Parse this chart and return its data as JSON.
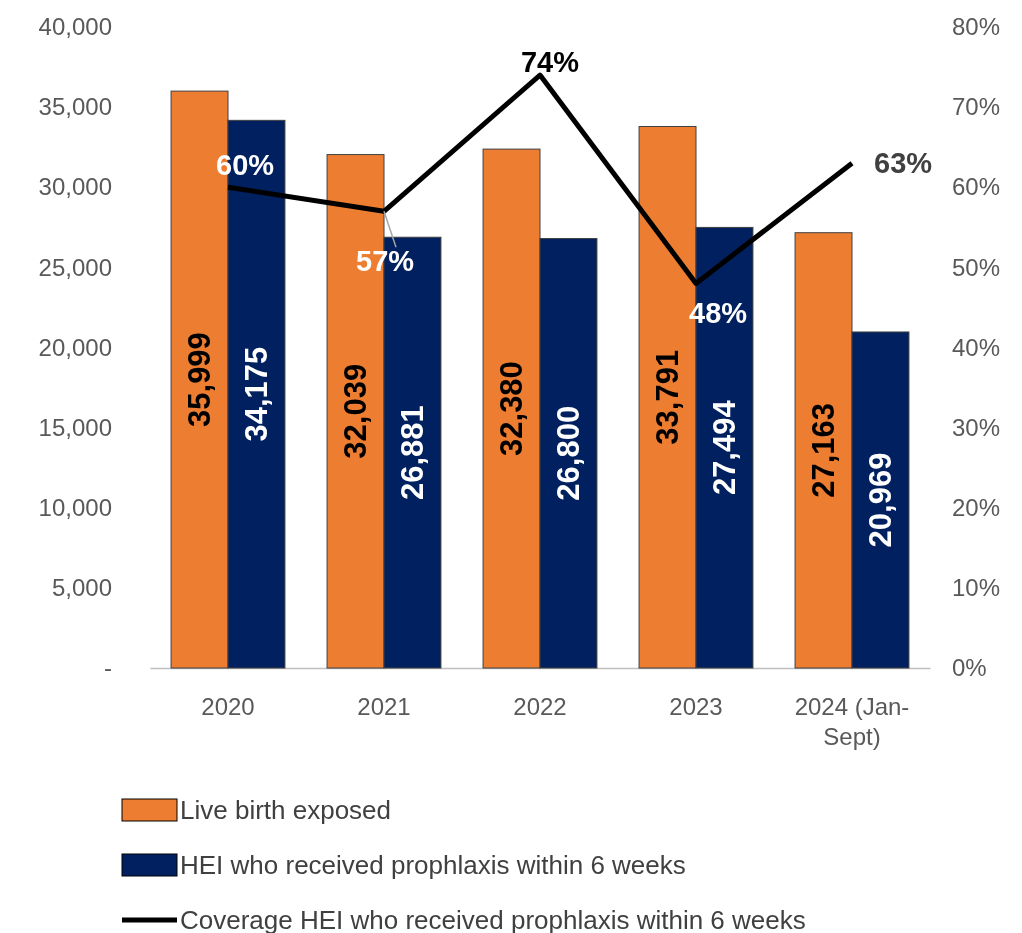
{
  "chart_data": {
    "type": "bar",
    "categories": [
      "2020",
      "2021",
      "2022",
      "2023",
      "2024 (Jan-Sept)"
    ],
    "ylim": [
      0,
      40000
    ],
    "yticks": [
      {
        "value": 0,
        "label": "-"
      },
      {
        "value": 5000,
        "label": "5,000"
      },
      {
        "value": 10000,
        "label": "10,000"
      },
      {
        "value": 15000,
        "label": "15,000"
      },
      {
        "value": 20000,
        "label": "20,000"
      },
      {
        "value": 25000,
        "label": "25,000"
      },
      {
        "value": 30000,
        "label": "30,000"
      },
      {
        "value": 35000,
        "label": "35,000"
      },
      {
        "value": 40000,
        "label": "40,000"
      }
    ],
    "y2lim": [
      0,
      80
    ],
    "y2ticks": [
      {
        "value": 0,
        "label": "0%"
      },
      {
        "value": 10,
        "label": "10%"
      },
      {
        "value": 20,
        "label": "20%"
      },
      {
        "value": 30,
        "label": "30%"
      },
      {
        "value": 40,
        "label": "40%"
      },
      {
        "value": 50,
        "label": "50%"
      },
      {
        "value": 60,
        "label": "60%"
      },
      {
        "value": 70,
        "label": "70%"
      },
      {
        "value": 80,
        "label": "80%"
      }
    ],
    "series": [
      {
        "name": "Live birth exposed",
        "color": "#ed7d31",
        "values": [
          35999,
          32039,
          32380,
          33791,
          27163
        ],
        "value_labels": [
          "35,999",
          "32,039",
          "32,380",
          "33,791",
          "27,163"
        ]
      },
      {
        "name": "HEI who received prophlaxis within 6 weeks",
        "color": "#002060",
        "values": [
          34175,
          26881,
          26800,
          27494,
          20969
        ],
        "value_labels": [
          "34,175",
          "26,881",
          "26,800",
          "27,494",
          "20,969"
        ]
      },
      {
        "name": "Coverage HEI who received prophlaxis within 6 weeks",
        "type": "line",
        "axis": "y2",
        "color": "#000000",
        "values": [
          60,
          57,
          74,
          48,
          63
        ],
        "value_labels": [
          "60%",
          "57%",
          "74%",
          "48%",
          "63%"
        ]
      }
    ],
    "legend": "bottom",
    "grid": false,
    "marker": "none",
    "line_style": "solid"
  }
}
